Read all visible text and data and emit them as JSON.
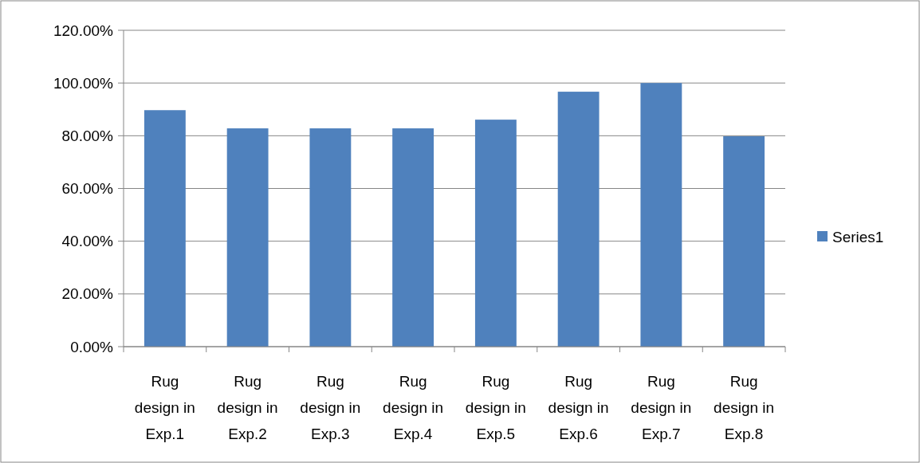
{
  "chart_data": {
    "type": "bar",
    "categories": [
      "Rug design in Exp.1",
      "Rug design in Exp.2",
      "Rug design in Exp.3",
      "Rug design in Exp.4",
      "Rug design in Exp.5",
      "Rug design in Exp.6",
      "Rug design in Exp.7",
      "Rug design in Exp.8"
    ],
    "series": [
      {
        "name": "Series1",
        "color": "#4f81bd",
        "values": [
          89.7,
          82.8,
          82.8,
          82.8,
          86.1,
          96.7,
          100,
          79.8
        ]
      }
    ],
    "ylim": [
      0,
      120
    ],
    "yticks": [
      {
        "value": 0,
        "label": "0.00%"
      },
      {
        "value": 20,
        "label": "20.00%"
      },
      {
        "value": 40,
        "label": "40.00%"
      },
      {
        "value": 60,
        "label": "60.00%"
      },
      {
        "value": 80,
        "label": "80.00%"
      },
      {
        "value": 100,
        "label": "100.00%"
      },
      {
        "value": 120,
        "label": "120.00%"
      }
    ],
    "grid": "y",
    "legend": "right"
  }
}
